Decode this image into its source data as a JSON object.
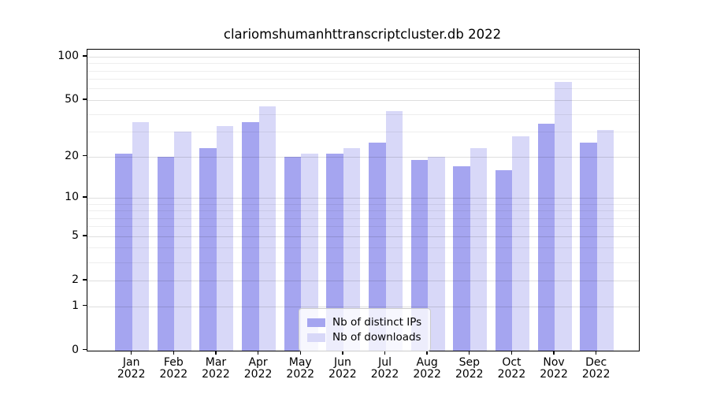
{
  "title": "clariomshumanhttranscriptcluster.db 2022",
  "chart_data": {
    "type": "bar",
    "title": "clariomshumanhttranscriptcluster.db 2022",
    "categories": [
      "Jan",
      "Feb",
      "Mar",
      "Apr",
      "May",
      "Jun",
      "Jul",
      "Aug",
      "Sep",
      "Oct",
      "Nov",
      "Dec"
    ],
    "category_year": "2022",
    "series": [
      {
        "name": "Nb of distinct IPs",
        "color": "#a5a5f0",
        "values": [
          21,
          20,
          23,
          35,
          20,
          21,
          25,
          19,
          17,
          16,
          34,
          25
        ]
      },
      {
        "name": "Nb of downloads",
        "color": "#d8d8f8",
        "values": [
          35,
          30,
          33,
          45,
          21,
          23,
          42,
          20,
          23,
          28,
          67,
          31
        ]
      }
    ],
    "yscale": "log1p",
    "ylim": [
      0,
      112
    ],
    "yticks": [
      0,
      1,
      2,
      5,
      10,
      20,
      50,
      100
    ],
    "minor_gridlines": [
      3,
      4,
      6,
      7,
      8,
      9,
      30,
      40,
      60,
      70,
      80,
      90
    ],
    "grid": "on",
    "legend_position": "lower center",
    "xlabel": "",
    "ylabel": ""
  },
  "colors": {
    "bar_ips": "#a5a5f0",
    "bar_downloads": "#d8d8f8",
    "axis": "#000000",
    "grid_major": "rgba(0,0,0,0.13)",
    "grid_minor": "rgba(0,0,0,0.065)",
    "legend_border": "#cccccc",
    "legend_background": "rgba(255,255,255,0.8)",
    "background": "#ffffff",
    "text": "#000000"
  }
}
